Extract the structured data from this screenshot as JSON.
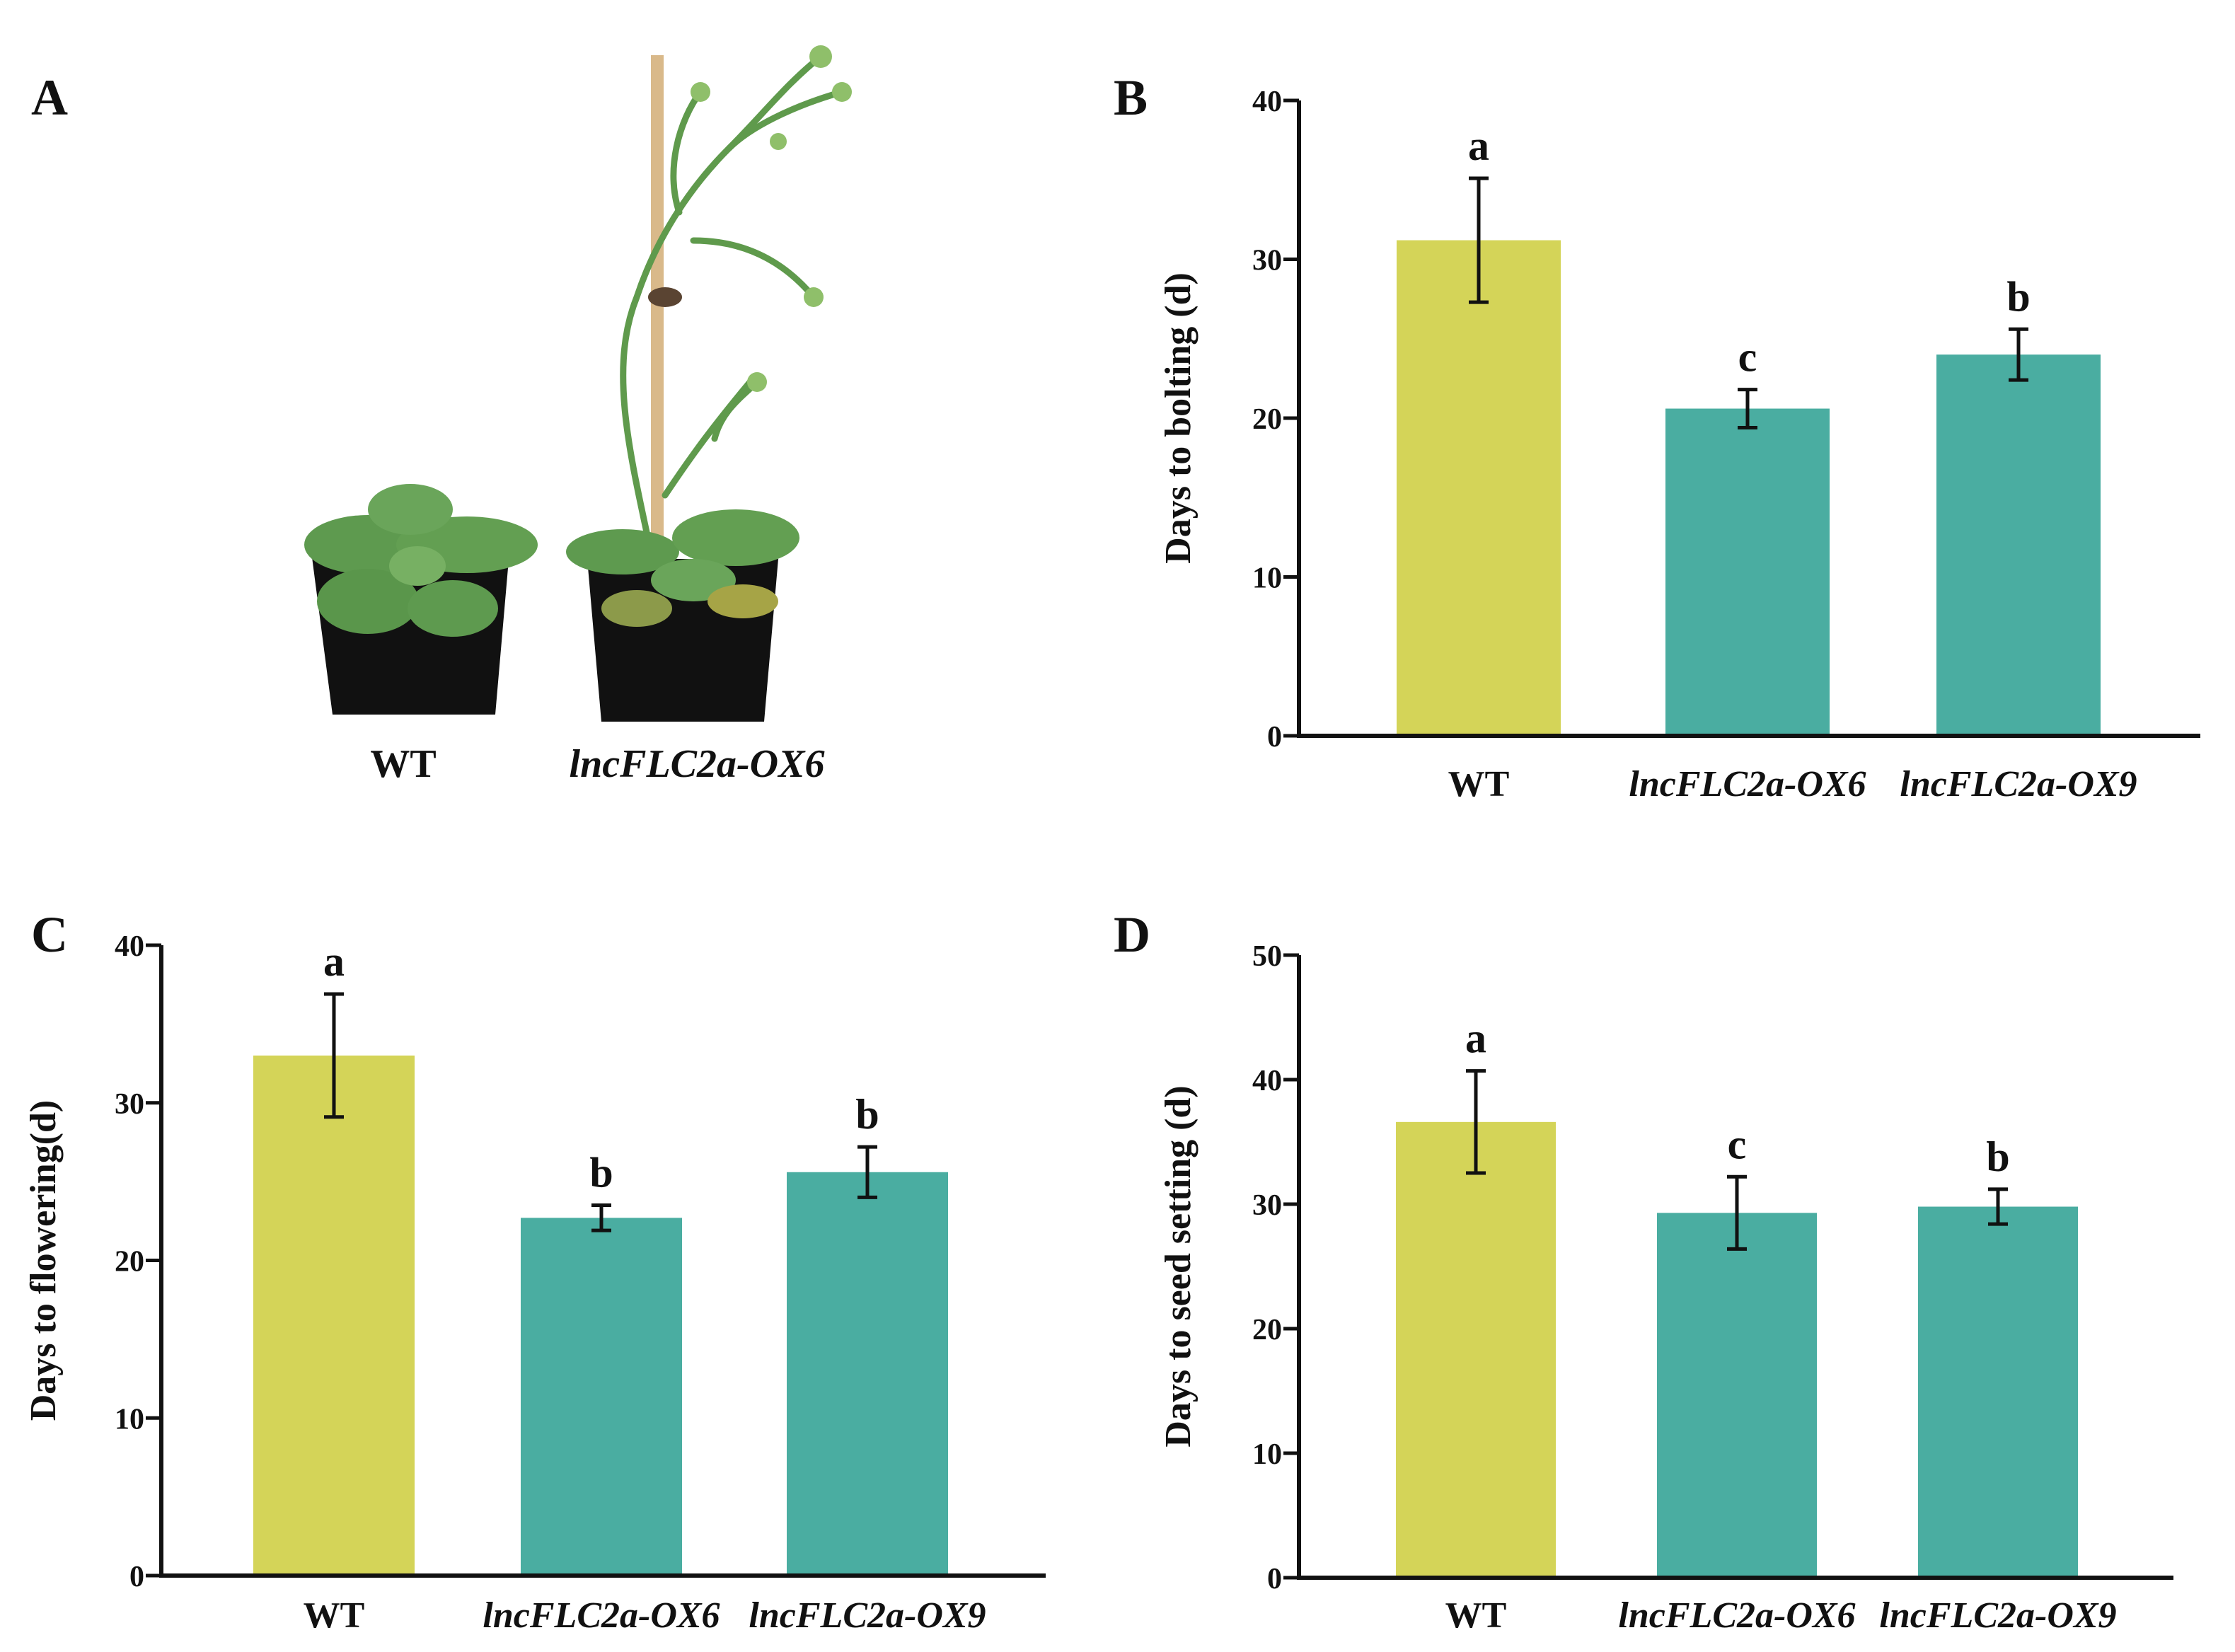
{
  "panels": {
    "A": {
      "letter": "A",
      "labels": [
        "WT",
        "lncFLC2a-OX6"
      ]
    }
  },
  "colors": {
    "wt_bar": "#d4d458",
    "mutant_bar": "#4aada1",
    "axis": "#111111"
  },
  "chart_data": [
    {
      "panel": "B",
      "type": "bar",
      "ylabel": "Days to bolting (d)",
      "categories": [
        "WT",
        "lncFLC2a-OX6",
        "lncFLC2a-OX9"
      ],
      "italic_categories": [
        false,
        true,
        true
      ],
      "values": [
        31.2,
        20.6,
        24.0
      ],
      "errors": [
        3.9,
        1.2,
        1.6
      ],
      "significance": [
        "a",
        "c",
        "b"
      ],
      "ylim": [
        0,
        40
      ],
      "yticks": [
        0,
        10,
        20,
        30,
        40
      ]
    },
    {
      "panel": "C",
      "type": "bar",
      "ylabel": "Days to flowering(d)",
      "categories": [
        "WT",
        "lncFLC2a-OX6",
        "lncFLC2a-OX9"
      ],
      "italic_categories": [
        false,
        true,
        true
      ],
      "values": [
        33.0,
        22.7,
        25.6
      ],
      "errors": [
        3.9,
        0.8,
        1.6
      ],
      "significance": [
        "a",
        "b",
        "b"
      ],
      "ylim": [
        0,
        40
      ],
      "yticks": [
        0,
        10,
        20,
        30,
        40
      ]
    },
    {
      "panel": "D",
      "type": "bar",
      "ylabel": "Days to seed setting (d)",
      "categories": [
        "WT",
        "lncFLC2a-OX6",
        "lncFLC2a-OX9"
      ],
      "italic_categories": [
        false,
        true,
        true
      ],
      "values": [
        36.6,
        29.3,
        29.8
      ],
      "errors": [
        4.1,
        2.9,
        1.4
      ],
      "significance": [
        "a",
        "c",
        "b"
      ],
      "ylim": [
        0,
        50
      ],
      "yticks": [
        0,
        10,
        20,
        30,
        40,
        50
      ]
    }
  ]
}
